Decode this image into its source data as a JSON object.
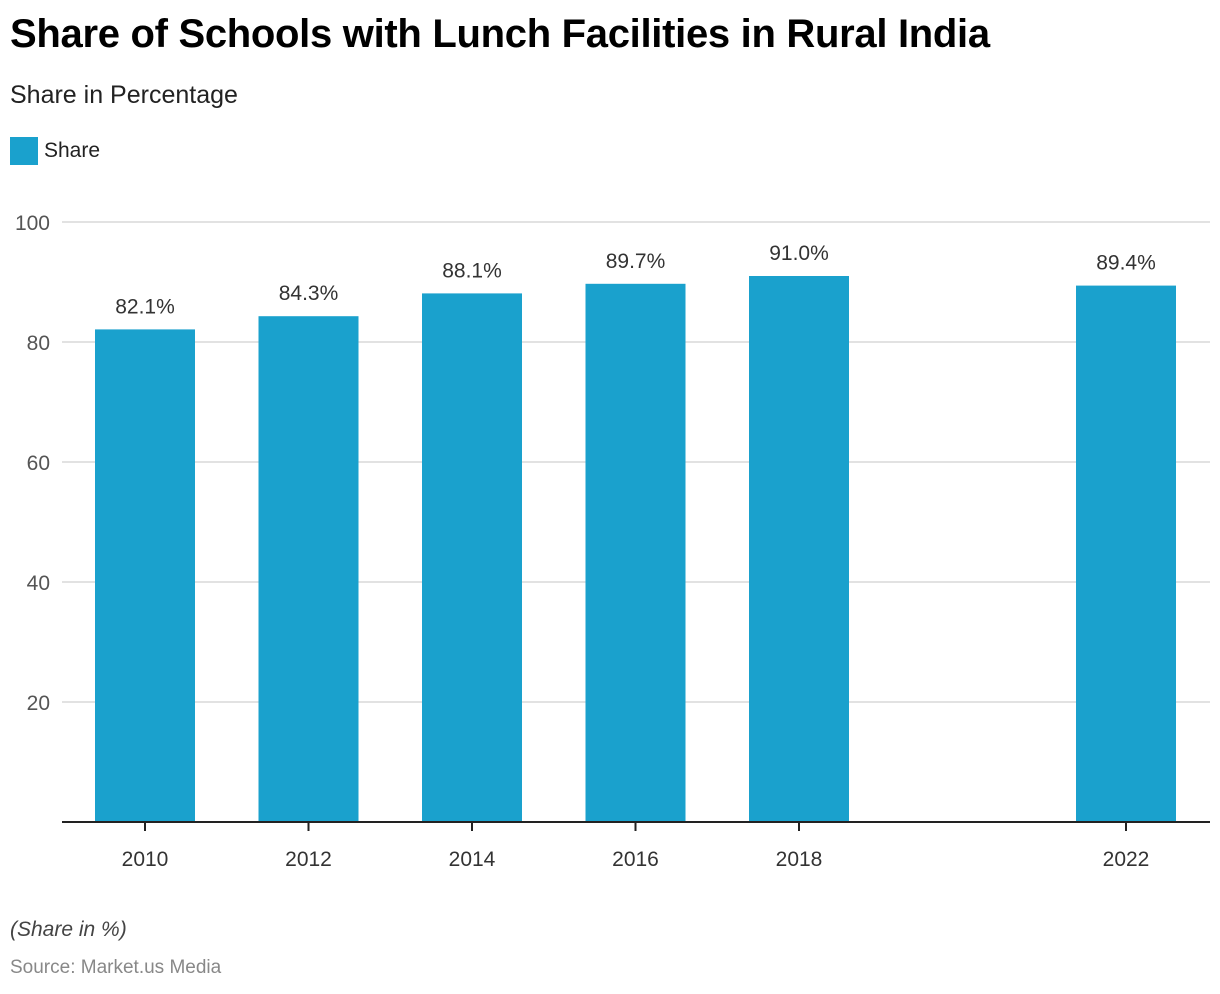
{
  "header": {
    "title": "Share of Schools with Lunch Facilities in Rural India",
    "subtitle": "Share in Percentage"
  },
  "legend": {
    "items": [
      {
        "label": "Share",
        "color": "#1aa1cd"
      }
    ]
  },
  "footer": {
    "note": "(Share in %)",
    "source": "Source: Market.us Media"
  },
  "colors": {
    "bar": "#1aa1cd",
    "grid": "#d9d9d9",
    "axis": "#222222",
    "tick_label": "#555555",
    "data_label": "#333333"
  },
  "chart_data": {
    "type": "bar",
    "title": "Share of Schools with Lunch Facilities in Rural India",
    "subtitle": "Share in Percentage",
    "xlabel": "",
    "ylabel": "",
    "x_scale": "linear-year",
    "x_range": [
      2009.4,
      2022.8
    ],
    "categories": [
      "2010",
      "2012",
      "2014",
      "2016",
      "2018",
      "2022"
    ],
    "x": [
      2010,
      2012,
      2014,
      2016,
      2018,
      2022
    ],
    "series": [
      {
        "name": "Share",
        "values": [
          82.1,
          84.3,
          88.1,
          89.7,
          91.0,
          89.4
        ]
      }
    ],
    "data_labels": [
      "82.1%",
      "84.3%",
      "88.1%",
      "89.7%",
      "91.0%",
      "89.4%"
    ],
    "ylim": [
      0,
      100
    ],
    "yticks": [
      20,
      40,
      60,
      80,
      100
    ],
    "grid": true,
    "legend_position": "top-left"
  }
}
